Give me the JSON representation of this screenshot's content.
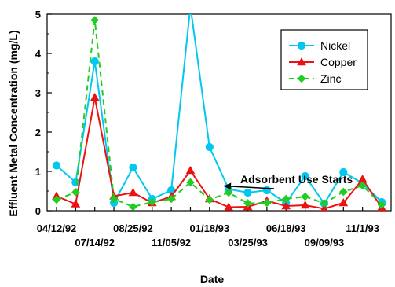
{
  "chart_data": {
    "type": "line",
    "xlabel": "Date",
    "ylabel": "Effluent Metal Concentration (mg/L)",
    "ylim": [
      0,
      5
    ],
    "y_ticks": [
      "0",
      "1",
      "2",
      "3",
      "4",
      "5"
    ],
    "x_tick_labels": [
      "04/12/92",
      "07/14/92",
      "08/25/92",
      "11/05/92",
      "01/18/93",
      "03/25/93",
      "06/18/93",
      "09/09/93",
      "11/1/93"
    ],
    "x_tick_positions": [
      0,
      2,
      4,
      6,
      8,
      10,
      12,
      14,
      16
    ],
    "x": [
      0,
      1,
      2,
      3,
      4,
      5,
      6,
      7,
      8,
      9,
      10,
      11,
      12,
      13,
      14,
      15,
      16,
      17
    ],
    "legend_position": "top-right",
    "grid": false,
    "series": [
      {
        "name": "Nickel",
        "color": "#00c8f0",
        "marker": "circle",
        "dash": false,
        "values": [
          1.15,
          0.72,
          3.8,
          0.2,
          1.1,
          0.3,
          0.52,
          5.2,
          1.62,
          0.55,
          0.46,
          0.52,
          0.2,
          0.88,
          0.18,
          0.98,
          0.7,
          0.22
        ]
      },
      {
        "name": "Copper",
        "color": "#ee1111",
        "marker": "triangle",
        "dash": false,
        "values": [
          0.37,
          0.17,
          2.88,
          0.37,
          0.46,
          0.2,
          0.36,
          1.02,
          0.3,
          0.09,
          0.1,
          0.25,
          0.12,
          0.14,
          0.05,
          0.2,
          0.8,
          0.08
        ]
      },
      {
        "name": "Zinc",
        "color": "#22cc22",
        "marker": "diamond",
        "dash": true,
        "values": [
          0.28,
          0.47,
          4.85,
          0.3,
          0.1,
          0.22,
          0.3,
          0.72,
          0.28,
          0.46,
          0.19,
          0.2,
          0.3,
          0.36,
          0.19,
          0.48,
          0.64,
          0.15
        ]
      }
    ],
    "annotations": [
      {
        "text": "Adsorbent Use Starts",
        "arrow_to_x": 8.5,
        "arrow_to_y": 0.55
      }
    ]
  }
}
